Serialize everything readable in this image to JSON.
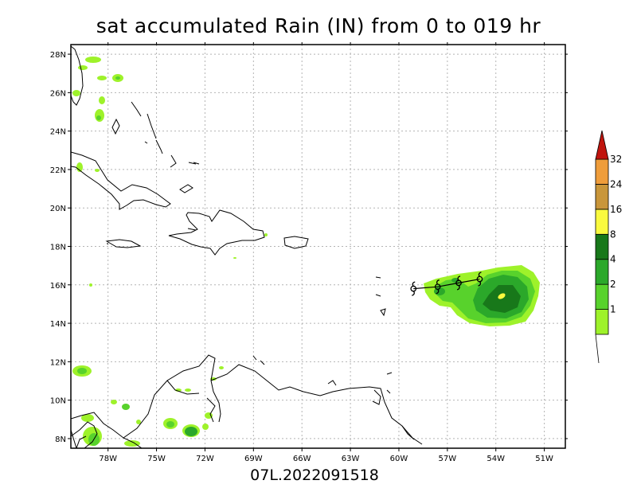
{
  "title": "sat accumulated Rain (IN) from 0 to 019 hr",
  "footer": "07L.2022091518",
  "map": {
    "lon_range": [
      -80.3,
      -49.7
    ],
    "lat_range": [
      7.5,
      28.5
    ],
    "lon_ticks": [
      -78,
      -75,
      -72,
      -69,
      -66,
      -63,
      -60,
      -57,
      -54,
      -51
    ],
    "lon_tick_labels": [
      "78W",
      "75W",
      "72W",
      "69W",
      "66W",
      "63W",
      "60W",
      "57W",
      "54W",
      "51W"
    ],
    "lat_ticks": [
      8,
      10,
      12,
      14,
      16,
      18,
      20,
      22,
      24,
      26,
      28
    ],
    "lat_tick_labels": [
      "8N",
      "10N",
      "12N",
      "14N",
      "16N",
      "18N",
      "20N",
      "22N",
      "24N",
      "26N",
      "28N"
    ],
    "grid": true,
    "storm_track": [
      {
        "lon": -59.1,
        "lat": 15.8
      },
      {
        "lon": -57.6,
        "lat": 15.9
      },
      {
        "lon": -56.3,
        "lat": 16.1
      },
      {
        "lon": -55.0,
        "lat": 16.3
      }
    ]
  },
  "colorbar": {
    "levels": [
      "1",
      "2",
      "4",
      "8",
      "16",
      "24",
      "32"
    ],
    "colors": [
      "#9ef22a",
      "#58d22c",
      "#2ba82a",
      "#18781a",
      "#fafa3e",
      "#c9963a",
      "#ef9d3b",
      "#c0150e"
    ]
  },
  "colors": {
    "light_green": "#9ef22a",
    "green": "#58d22c",
    "mid_green": "#2ba82a",
    "dark_green": "#18781a",
    "yellow": "#fafa3e"
  }
}
